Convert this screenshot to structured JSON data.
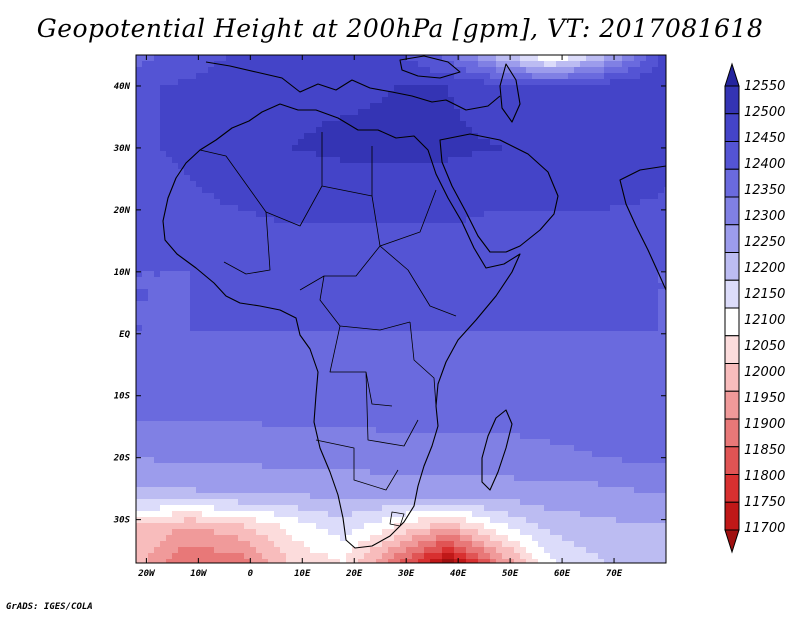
{
  "chart_data": {
    "type": "heatmap",
    "title": "Geopotential Height at 200hPa [gpm], VT: 2017081618",
    "variable": "Geopotential Height",
    "level": "200hPa",
    "units": "gpm",
    "valid_time": "2017081618",
    "x_ticks": [
      "20W",
      "10W",
      "0",
      "10E",
      "20E",
      "30E",
      "40E",
      "50E",
      "60E",
      "70E"
    ],
    "x_tick_values": [
      -20,
      -10,
      0,
      10,
      20,
      30,
      40,
      50,
      60,
      70
    ],
    "y_ticks": [
      "30S",
      "20S",
      "10S",
      "EQ",
      "10N",
      "20N",
      "30N",
      "40N"
    ],
    "y_tick_values": [
      -30,
      -20,
      -10,
      0,
      10,
      20,
      30,
      40
    ],
    "xlim": [
      -22,
      80
    ],
    "ylim": [
      -37,
      45
    ],
    "colorbar": {
      "levels": [
        11700,
        11750,
        11800,
        11850,
        11900,
        11950,
        12000,
        12050,
        12100,
        12150,
        12200,
        12250,
        12300,
        12350,
        12400,
        12450,
        12500,
        12550
      ],
      "labels": [
        "11700",
        "11750",
        "11800",
        "11850",
        "11900",
        "11950",
        "12000",
        "12050",
        "12100",
        "12150",
        "12200",
        "12250",
        "12300",
        "12350",
        "12400",
        "12450",
        "12500",
        "12550"
      ],
      "colors": [
        "#a01010",
        "#c01818",
        "#d83030",
        "#e05454",
        "#e87878",
        "#f09a9a",
        "#f8bcbc",
        "#fcdcdc",
        "#ffffff",
        "#dcdcfa",
        "#bcbcf2",
        "#9c9cec",
        "#8080e4",
        "#6a6ade",
        "#5454d4",
        "#4444c8",
        "#3434b4",
        "#24249e"
      ]
    },
    "field_values": [
      [
        12380,
        12420,
        12460,
        12480,
        12480,
        12460,
        12380,
        12220,
        12080,
        12220,
        12420,
        12480
      ],
      [
        12440,
        12460,
        12480,
        12490,
        12490,
        12500,
        12500,
        12470,
        12450,
        12480,
        12500,
        12500
      ],
      [
        12440,
        12460,
        12480,
        12500,
        12510,
        12510,
        12510,
        12500,
        12500,
        12500,
        12500,
        12490
      ],
      [
        12420,
        12440,
        12450,
        12460,
        12460,
        12460,
        12460,
        12450,
        12450,
        12450,
        12440,
        12430
      ],
      [
        12400,
        12400,
        12410,
        12420,
        12420,
        12420,
        12420,
        12410,
        12410,
        12410,
        12400,
        12400
      ],
      [
        12400,
        12400,
        12400,
        12400,
        12400,
        12400,
        12400,
        12400,
        12400,
        12400,
        12400,
        12400
      ],
      [
        12380,
        12380,
        12380,
        12380,
        12380,
        12380,
        12380,
        12380,
        12380,
        12380,
        12380,
        12380
      ],
      [
        12300,
        12310,
        12310,
        12320,
        12320,
        12330,
        12330,
        12330,
        12340,
        12350,
        12360,
        12360
      ],
      [
        12240,
        12240,
        12250,
        12250,
        12260,
        12260,
        12260,
        12270,
        12280,
        12280,
        12300,
        12300
      ],
      [
        12050,
        12000,
        12040,
        12120,
        12180,
        12100,
        12020,
        12140,
        12220,
        12240,
        12250,
        12250
      ],
      [
        12020,
        11900,
        11920,
        12060,
        12100,
        11920,
        11720,
        11950,
        12140,
        12200,
        12220,
        12220
      ]
    ],
    "field_lon": [
      -22,
      -12,
      -2,
      8,
      18,
      28,
      38,
      48,
      58,
      68,
      78,
      80
    ],
    "field_lat": [
      45,
      40,
      30,
      20,
      10,
      0,
      -10,
      -20,
      -26,
      -31,
      -37
    ],
    "colorbar_label_note": "max 12550 at top, min 11700 at bottom"
  },
  "credit": "GrADS: IGES/COLA"
}
